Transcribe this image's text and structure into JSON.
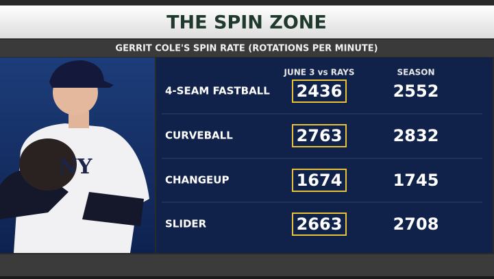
{
  "header": {
    "title": "THE SPIN ZONE",
    "subtitle": "GERRIT COLE'S SPIN RATE  (ROTATIONS PER MINUTE)"
  },
  "table": {
    "columns": [
      "JUNE 3 vs RAYS",
      "SEASON"
    ],
    "rows": [
      [
        "4-SEAM FASTBALL",
        2436,
        2552
      ],
      [
        "CURVEBALL",
        2763,
        2832
      ],
      [
        "CHANGEUP",
        1674,
        1745
      ],
      [
        "SLIDER",
        2663,
        2708
      ]
    ]
  }
}
